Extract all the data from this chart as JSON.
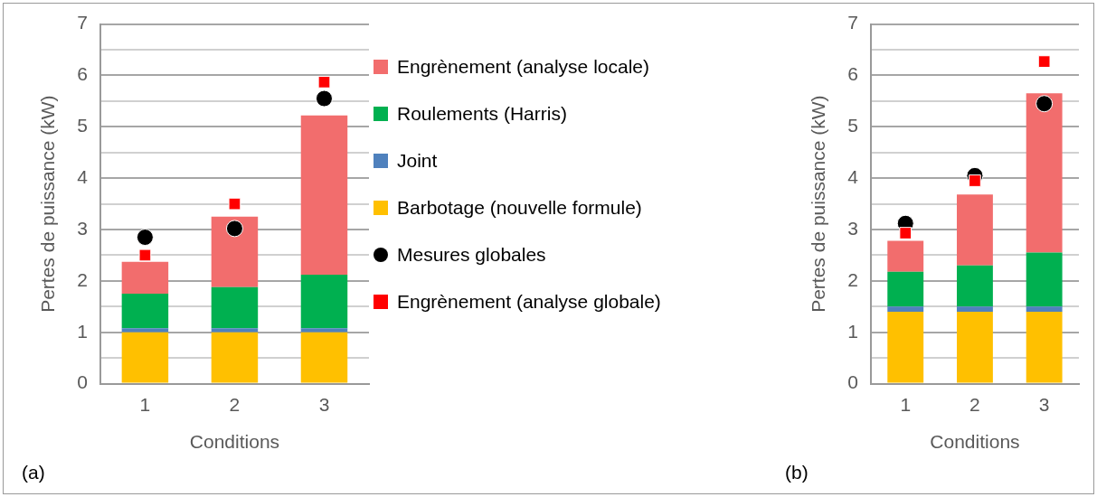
{
  "chart_data": [
    {
      "type": "bar",
      "stacked": true,
      "categories": [
        "1",
        "2",
        "3"
      ],
      "xlabel": "Conditions",
      "ylabel": "Pertes de puissance (kW)",
      "ylim": [
        0,
        7
      ],
      "yticks": [
        0,
        {
          "value": 0.5,
          "label": null
        },
        1,
        {
          "value": 1.5,
          "label": null
        },
        2,
        {
          "value": 2.5,
          "label": null
        },
        3,
        {
          "value": 3.5,
          "label": null
        },
        4,
        {
          "value": 4.5,
          "label": null
        },
        5,
        {
          "value": 5.5,
          "label": null
        },
        6,
        {
          "value": 6.5,
          "label": null
        },
        7
      ],
      "grid": "y",
      "legend": "right",
      "annotations": [
        "(a)"
      ],
      "series": [
        {
          "name": "Barbotage (nouvelle formule)",
          "color": "#ffc000",
          "values": [
            1.0,
            1.0,
            1.0
          ]
        },
        {
          "name": "Joint",
          "color": "#4f81bd",
          "values": [
            0.08,
            0.08,
            0.08
          ]
        },
        {
          "name": "Roulements (Harris)",
          "color": "#00b050",
          "values": [
            0.67,
            0.8,
            1.04
          ]
        },
        {
          "name": "Engrènement (analyse locale)",
          "color": "#f26d6d",
          "values": [
            0.62,
            1.37,
            3.1
          ]
        },
        {
          "name": "Mesures globales",
          "type": "scatter",
          "marker": "circle",
          "color": "#000000",
          "x": [
            "1",
            "2",
            "3"
          ],
          "values": [
            2.85,
            3.02,
            5.55
          ]
        },
        {
          "name": "Engrènement (analyse globale)",
          "type": "scatter",
          "marker": "square",
          "color": "#ff0000",
          "x": [
            "1",
            "2",
            "3"
          ],
          "values": [
            2.5,
            3.5,
            5.87
          ]
        }
      ]
    },
    {
      "type": "bar",
      "stacked": true,
      "categories": [
        "1",
        "2",
        "3"
      ],
      "xlabel": "Conditions",
      "ylabel": "Pertes de puissance (kW)",
      "ylim": [
        0,
        7
      ],
      "yticks": [
        0,
        {
          "value": 0.5,
          "label": null
        },
        1,
        {
          "value": 1.5,
          "label": null
        },
        2,
        {
          "value": 2.5,
          "label": null
        },
        3,
        {
          "value": 3.5,
          "label": null
        },
        4,
        {
          "value": 4.5,
          "label": null
        },
        5,
        {
          "value": 5.5,
          "label": null
        },
        6,
        {
          "value": 6.5,
          "label": null
        },
        7
      ],
      "grid": "y",
      "annotations": [
        "(b)"
      ],
      "series": [
        {
          "color": "#ffc000",
          "values": [
            1.4,
            1.4,
            1.4
          ]
        },
        {
          "color": "#4f81bd",
          "values": [
            0.1,
            0.1,
            0.1
          ]
        },
        {
          "color": "#00b050",
          "values": [
            0.68,
            0.8,
            1.05
          ]
        },
        {
          "color": "#f26d6d",
          "values": [
            0.6,
            1.38,
            3.1
          ]
        },
        {
          "type": "scatter",
          "marker": "circle",
          "color": "#000000",
          "x": [
            "1",
            "2",
            "3"
          ],
          "values": [
            3.12,
            4.05,
            5.45
          ]
        },
        {
          "type": "scatter",
          "marker": "square",
          "color": "#ff0000",
          "x": [
            "1",
            "2",
            "3"
          ],
          "values": [
            2.93,
            3.95,
            6.27
          ]
        }
      ]
    }
  ]
}
